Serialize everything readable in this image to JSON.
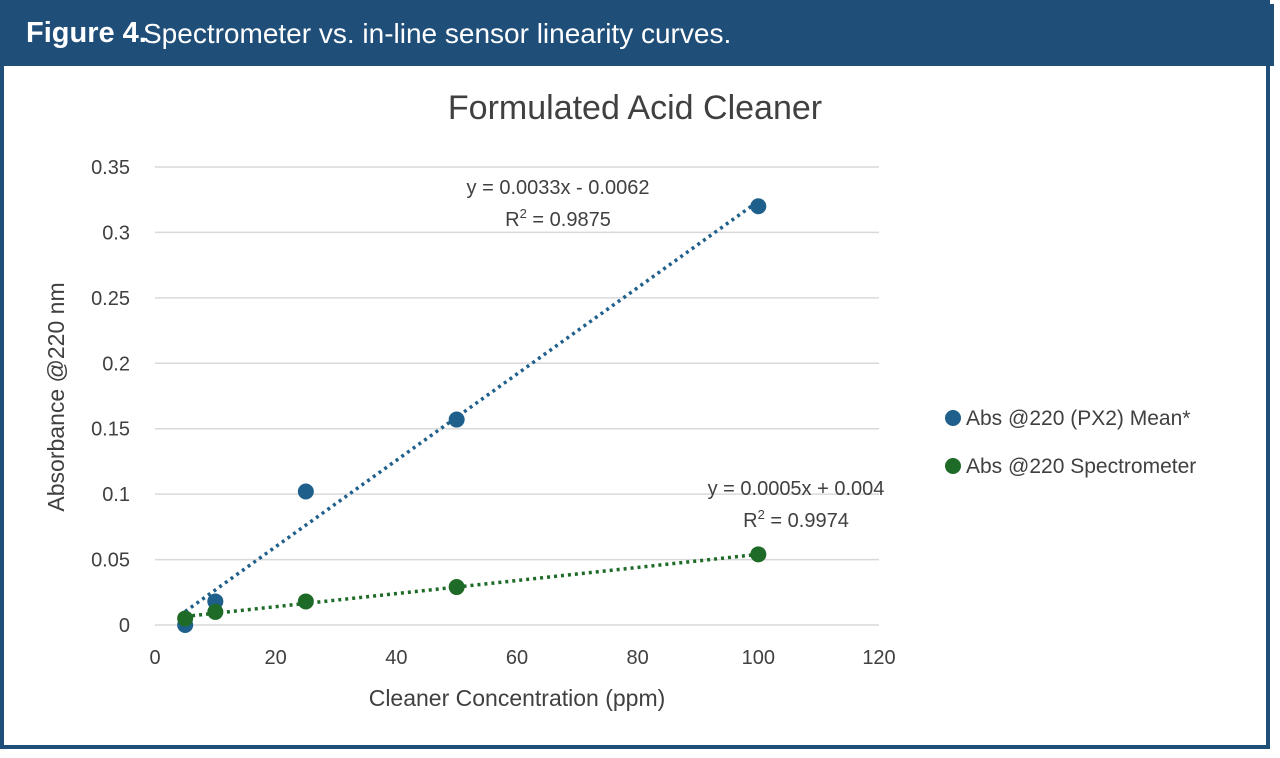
{
  "figure": {
    "label": "Figure 4.",
    "caption": "Spectrometer vs. in-line sensor linearity curves."
  },
  "colors": {
    "header": "#1f4e79",
    "series1": "#1f5f8b",
    "series2": "#1e6b28",
    "grid": "#d9d9d9",
    "text": "#404040"
  },
  "chart_data": {
    "type": "scatter",
    "title": "Formulated Acid Cleaner",
    "xlabel": "Cleaner Concentration (ppm)",
    "ylabel": "Absorbance @220 nm",
    "xlim": [
      0,
      120
    ],
    "ylim": [
      0,
      0.35
    ],
    "xticks": [
      0,
      20,
      40,
      60,
      80,
      100,
      120
    ],
    "yticks": [
      0,
      0.05,
      0.1,
      0.15,
      0.2,
      0.25,
      0.3,
      0.35
    ],
    "xtick_labels": [
      "0",
      "20",
      "40",
      "60",
      "80",
      "100",
      "120"
    ],
    "ytick_labels": [
      "0",
      "0.05",
      "0.1",
      "0.15",
      "0.2",
      "0.25",
      "0.3",
      "0.35"
    ],
    "grid": "horizontal",
    "legend_position": "right",
    "series": [
      {
        "name": "Abs @220 (PX2) Mean*",
        "color": "#1f5f8b",
        "x": [
          5,
          10,
          25,
          50,
          100
        ],
        "y": [
          0.0,
          0.018,
          0.102,
          0.157,
          0.32
        ],
        "trendline": {
          "type": "linear",
          "slope": 0.0033,
          "intercept": -0.0062,
          "equation": "y = 0.0033x - 0.0062",
          "r2_prefix": "R",
          "r2_sup": "2",
          "r2_value": " = 0.9875"
        }
      },
      {
        "name": "Abs @220 Spectrometer",
        "color": "#1e6b28",
        "x": [
          5,
          10,
          25,
          50,
          100
        ],
        "y": [
          0.005,
          0.01,
          0.018,
          0.029,
          0.054
        ],
        "trendline": {
          "type": "linear",
          "slope": 0.0005,
          "intercept": 0.004,
          "equation": "y = 0.0005x + 0.004",
          "r2_prefix": "R",
          "r2_sup": "2",
          "r2_value": " = 0.9974"
        }
      }
    ]
  }
}
